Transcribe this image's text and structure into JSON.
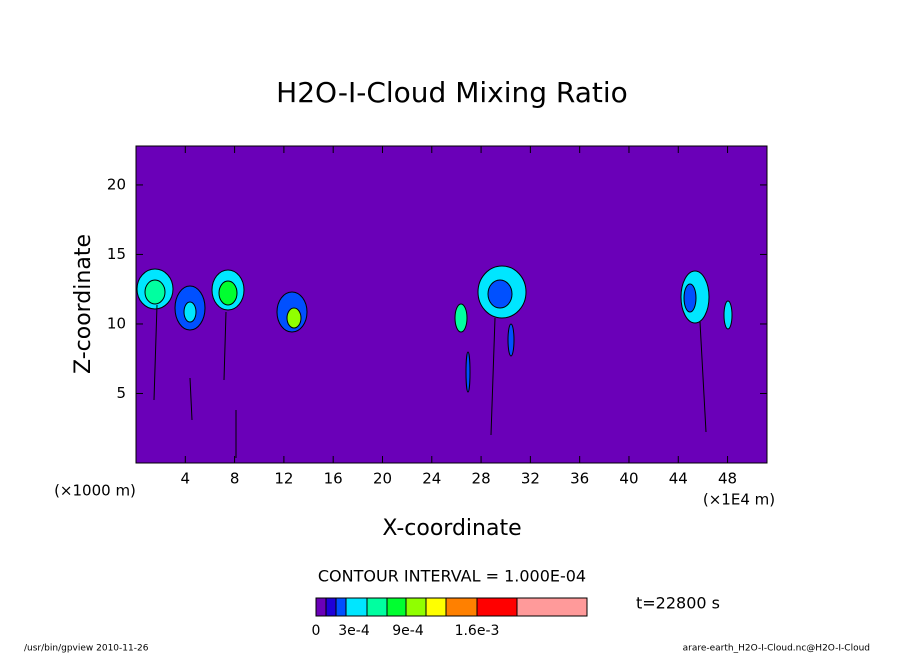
{
  "chart_data": {
    "type": "contour",
    "title": "H2O-I-Cloud Mixing Ratio",
    "x_label": "X-coordinate",
    "y_label": "Z-coordinate",
    "x_unit": "(×1000 m)",
    "x_unit_right": "(×1E4 m)",
    "xlim": [
      0,
      51.2
    ],
    "xticks": [
      4,
      8,
      12,
      16,
      20,
      24,
      28,
      32,
      36,
      40,
      44,
      48
    ],
    "ylim": [
      0,
      22.8
    ],
    "yticks": [
      5,
      10,
      15,
      20
    ],
    "background_color": "#6a00b8",
    "contour_interval": "CONTOUR INTERVAL = 1.000E-04",
    "time_label": "t=22800 s",
    "colorbar": {
      "colors": [
        "#6a00b8",
        "#1f00d8",
        "#0050ff",
        "#00e6ff",
        "#00ffa0",
        "#00ff30",
        "#90ff00",
        "#ffff00",
        "#ff8000",
        "#ff0000",
        "#ff9a9a"
      ],
      "labels": [
        "0",
        "3e-4",
        "9e-4",
        "1.6e-3"
      ]
    },
    "footer_left": "/usr/bin/gpview  2010-11-26",
    "footer_right": "arare-earth_H2O-I-Cloud.nc@H2O-I-Cloud"
  }
}
